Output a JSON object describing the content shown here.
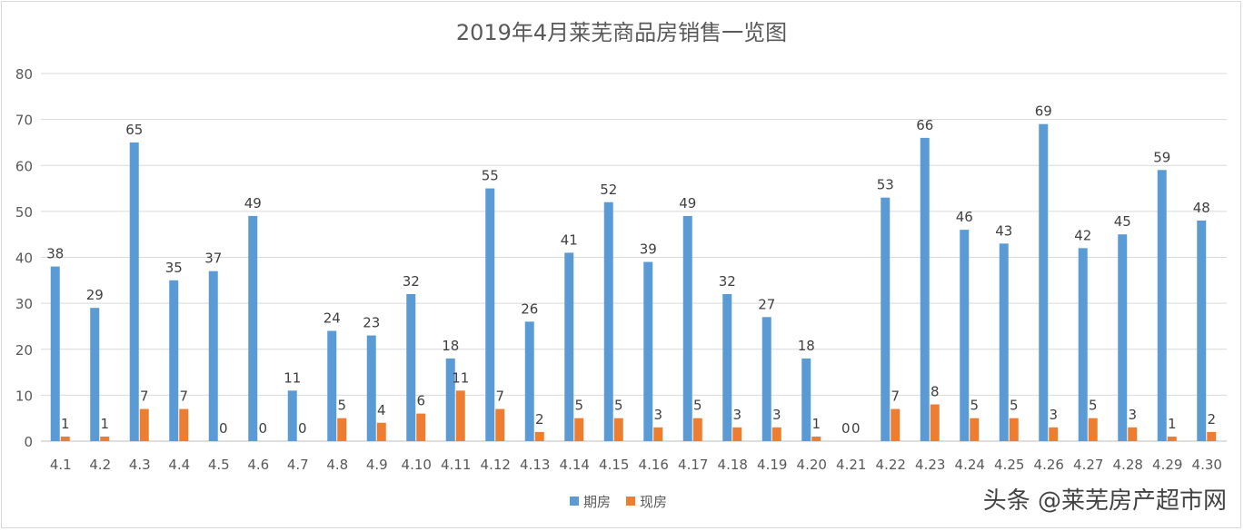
{
  "chart_data": {
    "type": "bar",
    "title": "2019年4月莱芜商品房销售一览图",
    "categories": [
      "4.1",
      "4.2",
      "4.3",
      "4.4",
      "4.5",
      "4.6",
      "4.7",
      "4.8",
      "4.9",
      "4.10",
      "4.11",
      "4.12",
      "4.13",
      "4.14",
      "4.15",
      "4.16",
      "4.17",
      "4.18",
      "4.19",
      "4.20",
      "4.21",
      "4.22",
      "4.23",
      "4.24",
      "4.25",
      "4.26",
      "4.27",
      "4.28",
      "4.29",
      "4.30"
    ],
    "series": [
      {
        "name": "期房",
        "color": "#5b9bd5",
        "values": [
          38,
          29,
          65,
          35,
          37,
          49,
          11,
          24,
          23,
          32,
          18,
          55,
          26,
          41,
          52,
          39,
          49,
          32,
          27,
          18,
          0,
          53,
          66,
          46,
          43,
          69,
          42,
          45,
          59,
          48
        ]
      },
      {
        "name": "现房",
        "color": "#ed7d31",
        "values": [
          1,
          1,
          7,
          7,
          0,
          0,
          0,
          5,
          4,
          6,
          11,
          7,
          2,
          5,
          5,
          3,
          5,
          3,
          3,
          1,
          0,
          7,
          8,
          5,
          5,
          3,
          5,
          3,
          1,
          2
        ]
      }
    ],
    "ylim": [
      0,
      80
    ],
    "yticks": [
      0,
      10,
      20,
      30,
      40,
      50,
      60,
      70,
      80
    ],
    "grid": true,
    "legend": "bottom",
    "xlabel": "",
    "ylabel": ""
  },
  "watermark": "头条 @莱芜房产超市网"
}
